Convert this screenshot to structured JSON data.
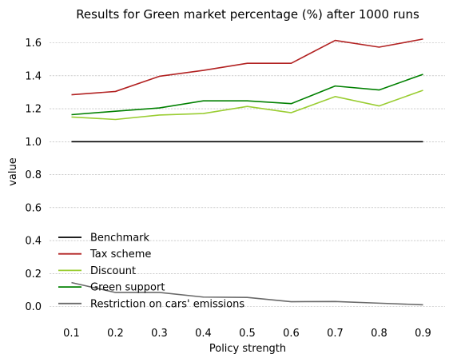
{
  "chart_data": {
    "type": "line",
    "title": "Results for Green market percentage (%) after 1000 runs",
    "xlabel": "Policy strength",
    "ylabel": "value",
    "x": [
      0.1,
      0.2,
      0.3,
      0.4,
      0.5,
      0.6,
      0.7,
      0.8,
      0.9
    ],
    "x_tick_labels": [
      "0.1",
      "0.2",
      "0.3",
      "0.4",
      "0.5",
      "0.6",
      "0.7",
      "0.8",
      "0.9"
    ],
    "y_ticks": [
      0.0,
      0.2,
      0.4,
      0.6,
      0.8,
      1.0,
      1.2,
      1.4,
      1.6
    ],
    "y_tick_labels": [
      "0.0",
      "0.2",
      "0.4",
      "0.6",
      "0.8",
      "1.0",
      "1.2",
      "1.4",
      "1.6"
    ],
    "xlim": [
      0.05,
      0.95
    ],
    "ylim": [
      -0.08,
      1.7
    ],
    "grid": "horizontal dashed",
    "legend_position": "lower-left",
    "series": [
      {
        "name": "Benchmark",
        "color": "#000000",
        "values": [
          1.0,
          1.0,
          1.0,
          1.0,
          1.0,
          1.0,
          1.0,
          1.0,
          1.0
        ]
      },
      {
        "name": "Tax scheme",
        "color": "#b22222",
        "values": [
          1.285,
          1.305,
          1.397,
          1.433,
          1.476,
          1.476,
          1.615,
          1.574,
          1.623
        ]
      },
      {
        "name": "Discount",
        "color": "#9acd32",
        "values": [
          1.15,
          1.135,
          1.162,
          1.171,
          1.214,
          1.176,
          1.274,
          1.217,
          1.312
        ]
      },
      {
        "name": "Green support",
        "color": "#008000",
        "values": [
          1.164,
          1.185,
          1.205,
          1.248,
          1.248,
          1.231,
          1.338,
          1.314,
          1.409
        ]
      },
      {
        "name": "Restriction on cars' emissions",
        "color": "#696969",
        "values": [
          0.145,
          0.085,
          0.085,
          0.057,
          0.055,
          0.029,
          0.03,
          0.02,
          0.01
        ]
      }
    ]
  }
}
